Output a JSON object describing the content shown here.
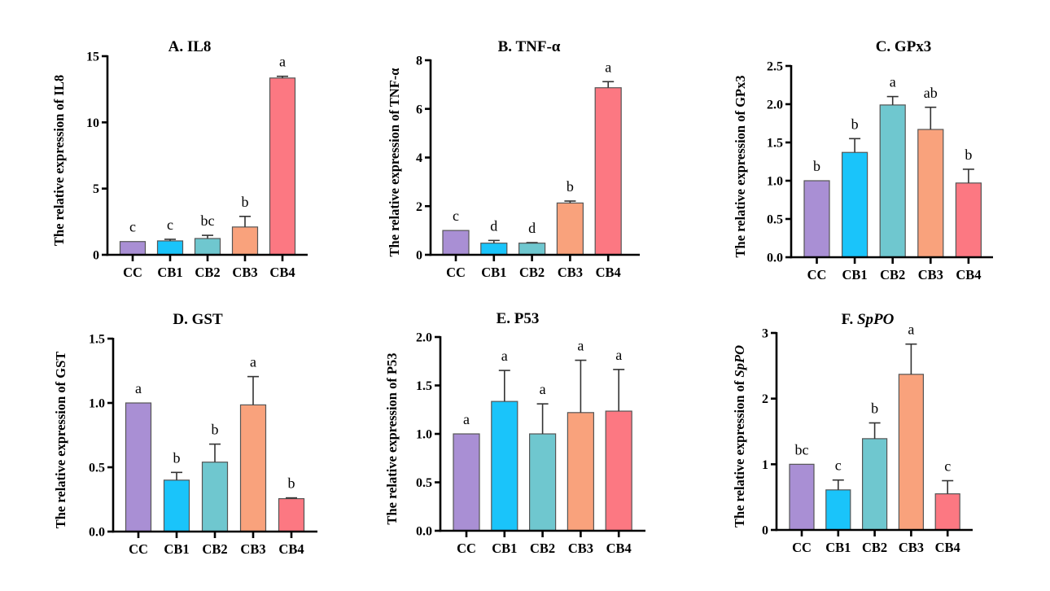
{
  "chart_data": [
    {
      "type": "bar",
      "panel": "A",
      "title": "A. IL8",
      "title_parts": [
        {
          "text": "A. IL8",
          "italic": false
        }
      ],
      "ylabel": "The relative expression of IL8",
      "ylabel_parts": [
        {
          "text": "The relative expression of IL8",
          "italic": false
        }
      ],
      "xlabel": "",
      "categories": [
        "CC",
        "CB1",
        "CB2",
        "CB3",
        "CB4"
      ],
      "values": [
        1.0,
        1.05,
        1.23,
        2.1,
        13.35
      ],
      "error_upper": [
        0.0,
        0.12,
        0.24,
        0.8,
        0.13
      ],
      "significance": [
        "c",
        "c",
        "bc",
        "b",
        "a"
      ],
      "ylim": [
        0,
        15
      ],
      "yticks": [
        0,
        5,
        10,
        15
      ],
      "ytick_labels": [
        "0",
        "5",
        "10",
        "15"
      ],
      "grid": false
    },
    {
      "type": "bar",
      "panel": "B",
      "title": "B. TNF-α",
      "title_parts": [
        {
          "text": "B. TNF-α",
          "italic": false
        }
      ],
      "ylabel": "The relative expression of TNF-α",
      "ylabel_parts": [
        {
          "text": "The relative expression of TNF-α",
          "italic": false
        }
      ],
      "xlabel": "",
      "categories": [
        "CC",
        "CB1",
        "CB2",
        "CB3",
        "CB4"
      ],
      "values": [
        1.0,
        0.48,
        0.48,
        2.13,
        6.87
      ],
      "error_upper": [
        0.0,
        0.11,
        0.02,
        0.08,
        0.25
      ],
      "significance": [
        "c",
        "d",
        "d",
        "b",
        "a"
      ],
      "ylim": [
        0,
        8
      ],
      "yticks": [
        0,
        2,
        4,
        6,
        8
      ],
      "ytick_labels": [
        "0",
        "2",
        "4",
        "6",
        "8"
      ],
      "grid": false
    },
    {
      "type": "bar",
      "panel": "C",
      "title": "C. GPx3",
      "title_parts": [
        {
          "text": "C. GPx3",
          "italic": false
        }
      ],
      "ylabel": "The relative expression of GPx3",
      "ylabel_parts": [
        {
          "text": "The relative expression of GPx3",
          "italic": false
        }
      ],
      "xlabel": "",
      "categories": [
        "CC",
        "CB1",
        "CB2",
        "CB3",
        "CB4"
      ],
      "values": [
        1.0,
        1.37,
        1.99,
        1.67,
        0.97
      ],
      "error_upper": [
        0.0,
        0.18,
        0.11,
        0.29,
        0.18
      ],
      "significance": [
        "b",
        "b",
        "a",
        "ab",
        "b"
      ],
      "ylim": [
        0,
        2.5
      ],
      "yticks": [
        0,
        0.5,
        1.0,
        1.5,
        2.0,
        2.5
      ],
      "ytick_labels": [
        "0.0",
        "0.5",
        "1.0",
        "1.5",
        "2.0",
        "2.5"
      ],
      "grid": false
    },
    {
      "type": "bar",
      "panel": "D",
      "title": "D. GST",
      "title_parts": [
        {
          "text": "D. GST",
          "italic": false
        }
      ],
      "ylabel": "The relative expression of GST",
      "ylabel_parts": [
        {
          "text": "The relative expression of GST",
          "italic": false
        }
      ],
      "xlabel": "",
      "categories": [
        "CC",
        "CB1",
        "CB2",
        "CB3",
        "CB4"
      ],
      "values": [
        1.0,
        0.4,
        0.54,
        0.985,
        0.256
      ],
      "error_upper": [
        0.0,
        0.06,
        0.14,
        0.22,
        0.006
      ],
      "significance": [
        "a",
        "b",
        "b",
        "a",
        "b"
      ],
      "ylim": [
        0,
        1.5
      ],
      "yticks": [
        0,
        0.5,
        1.0,
        1.5
      ],
      "ytick_labels": [
        "0.0",
        "0.5",
        "1.0",
        "1.5"
      ],
      "grid": false
    },
    {
      "type": "bar",
      "panel": "E",
      "title": "E. P53",
      "title_parts": [
        {
          "text": "E. P53",
          "italic": false
        }
      ],
      "ylabel": "The relative expression of P53",
      "ylabel_parts": [
        {
          "text": "The relative expression of P53",
          "italic": false
        }
      ],
      "xlabel": "",
      "categories": [
        "CC",
        "CB1",
        "CB2",
        "CB3",
        "CB4"
      ],
      "values": [
        1.0,
        1.335,
        1.0,
        1.22,
        1.235
      ],
      "error_upper": [
        0.0,
        0.32,
        0.31,
        0.54,
        0.43
      ],
      "significance": [
        "a",
        "a",
        "a",
        "a",
        "a"
      ],
      "ylim": [
        0,
        2.0
      ],
      "yticks": [
        0,
        0.5,
        1.0,
        1.5,
        2.0
      ],
      "ytick_labels": [
        "0.0",
        "0.5",
        "1.0",
        "1.5",
        "2.0"
      ],
      "grid": false
    },
    {
      "type": "bar",
      "panel": "F",
      "title": "F. SpPO",
      "title_parts": [
        {
          "text": "F. ",
          "italic": false
        },
        {
          "text": "SpPO",
          "italic": true
        }
      ],
      "ylabel": "The relative expression of SpPO",
      "ylabel_parts": [
        {
          "text": "The relative expression of ",
          "italic": false
        },
        {
          "text": "SpPO",
          "italic": true
        }
      ],
      "xlabel": "",
      "categories": [
        "CC",
        "CB1",
        "CB2",
        "CB3",
        "CB4"
      ],
      "values": [
        1.0,
        0.61,
        1.39,
        2.37,
        0.55
      ],
      "error_upper": [
        0.0,
        0.15,
        0.24,
        0.46,
        0.2
      ],
      "significance": [
        "bc",
        "c",
        "b",
        "a",
        "c"
      ],
      "ylim": [
        0,
        3
      ],
      "yticks": [
        0,
        1,
        2,
        3
      ],
      "ytick_labels": [
        "0",
        "1",
        "2",
        "3"
      ],
      "grid": false
    }
  ],
  "colors": {
    "CC": "#A98FD4",
    "CB1": "#1AC4FA",
    "CB2": "#6FC7CF",
    "CB3": "#F9A27C",
    "CB4": "#FC7882"
  }
}
